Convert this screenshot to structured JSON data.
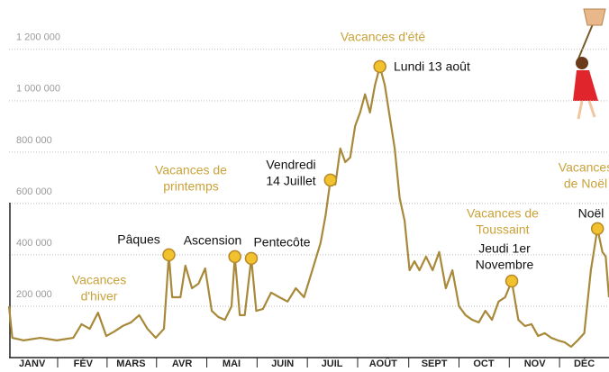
{
  "chart_data": {
    "type": "line",
    "xlim": [
      1,
      365
    ],
    "ylim": [
      0,
      1350000
    ],
    "xticks": [
      {
        "value": 15,
        "label": "JANV"
      },
      {
        "value": 46,
        "label": "FÉV"
      },
      {
        "value": 75,
        "label": "MARS"
      },
      {
        "value": 106,
        "label": "AVR"
      },
      {
        "value": 136,
        "label": "MAI"
      },
      {
        "value": 167,
        "label": "JUIN"
      },
      {
        "value": 197,
        "label": "JUIL"
      },
      {
        "value": 228,
        "label": "AOÛT"
      },
      {
        "value": 259,
        "label": "SEPT"
      },
      {
        "value": 289,
        "label": "OCT"
      },
      {
        "value": 320,
        "label": "NOV"
      },
      {
        "value": 350,
        "label": "DÉC"
      }
    ],
    "yticks": [
      {
        "value": 200000,
        "label": "200 000"
      },
      {
        "value": 400000,
        "label": "400 000"
      },
      {
        "value": 600000,
        "label": "600 000"
      },
      {
        "value": 800000,
        "label": "800 000"
      },
      {
        "value": 1000000,
        "label": "1 000 000"
      },
      {
        "value": 1200000,
        "label": "1 200 000"
      }
    ],
    "grid": true,
    "series": [
      {
        "color": "#a8893a",
        "x": [
          1,
          3,
          10,
          20,
          30,
          40,
          45,
          50,
          55,
          60,
          65,
          70,
          75,
          80,
          85,
          90,
          95,
          98,
          100,
          105,
          108,
          112,
          116,
          120,
          124,
          128,
          132,
          136,
          138,
          141,
          144,
          148,
          151,
          155,
          160,
          165,
          170,
          175,
          180,
          185,
          190,
          193,
          196,
          199,
          202,
          205,
          208,
          211,
          214,
          217,
          220,
          223,
          226,
          229,
          232,
          235,
          238,
          241,
          244,
          247,
          250,
          254,
          258,
          262,
          266,
          270,
          274,
          278,
          282,
          286,
          290,
          294,
          298,
          302,
          306,
          310,
          314,
          318,
          322,
          326,
          330,
          334,
          338,
          342,
          346,
          350,
          354,
          358,
          361,
          363,
          365
        ],
        "values": [
          200000,
          77000,
          67000,
          77000,
          67000,
          77000,
          130000,
          112000,
          175000,
          84000,
          102000,
          123000,
          137000,
          165000,
          112000,
          77000,
          112000,
          400000,
          235000,
          235000,
          358000,
          270000,
          288000,
          347000,
          182000,
          158000,
          147000,
          200000,
          393000,
          165000,
          165000,
          386000,
          182000,
          189000,
          253000,
          235000,
          218000,
          270000,
          235000,
          340000,
          446000,
          551000,
          691000,
          674000,
          814000,
          761000,
          779000,
          902000,
          954000,
          1025000,
          954000,
          1060000,
          1133000,
          1060000,
          937000,
          814000,
          621000,
          533000,
          340000,
          375000,
          340000,
          393000,
          340000,
          411000,
          270000,
          340000,
          200000,
          165000,
          147000,
          137000,
          182000,
          147000,
          218000,
          235000,
          298000,
          147000,
          123000,
          130000,
          84000,
          95000,
          77000,
          67000,
          60000,
          42000,
          67000,
          95000,
          340000,
          502000,
          411000,
          393000,
          235000
        ]
      }
    ],
    "annotations": [
      {
        "label": [
          "Pâques"
        ],
        "x": 98,
        "value": 400000
      },
      {
        "label": [
          "Ascension"
        ],
        "x": 138,
        "value": 393000
      },
      {
        "label": [
          "Pentecôte"
        ],
        "x": 148,
        "value": 386000
      },
      {
        "label": [
          "Vendredi",
          "14 Juillet"
        ],
        "x": 196,
        "value": 691000
      },
      {
        "label": [
          "Lundi 13 août"
        ],
        "x": 226,
        "value": 1133000
      },
      {
        "label": [
          "Jeudi 1er",
          "Novembre"
        ],
        "x": 306,
        "value": 298000
      },
      {
        "label": [
          "Noël"
        ],
        "x": 358,
        "value": 502000
      }
    ],
    "periods": [
      [
        "Vacances",
        "d'hiver"
      ],
      [
        "Vacances de",
        "printemps"
      ],
      [
        "Vacances  d'été"
      ],
      [
        "Vacances de",
        "Toussaint"
      ],
      [
        "Vacances",
        "de Noël"
      ]
    ]
  }
}
